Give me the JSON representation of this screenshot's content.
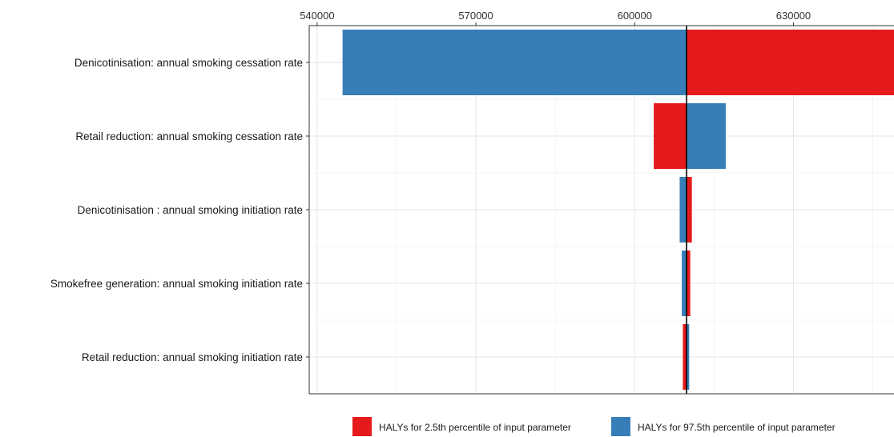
{
  "chart_data": {
    "type": "bar",
    "orientation": "horizontal",
    "subtype": "tornado",
    "baseline": 609800,
    "xlim": [
      538500,
      649000
    ],
    "xticks": [
      540000,
      570000,
      600000,
      630000
    ],
    "xtick_labels": [
      "540000",
      "570000",
      "600000",
      "630000"
    ],
    "x_axis_position": "top",
    "grid": true,
    "categories": [
      "Denicotinisation: annual smoking cessation rate",
      "Retail reduction: annual smoking cessation rate",
      "Denicotinisation : annual smoking initiation rate",
      "Smokefree generation: annual smoking initiation rate",
      "Retail reduction: annual smoking initiation rate"
    ],
    "series": [
      {
        "name": "HALYs for 2.5th percentile of input parameter",
        "color": "#e41a1c",
        "values": [
          652000,
          603600,
          610800,
          610500,
          609100
        ]
      },
      {
        "name": "HALYs for 97.5th percentile of input parameter",
        "color": "#377eb8",
        "values": [
          544800,
          617200,
          608500,
          608900,
          610300
        ]
      }
    ],
    "legend_position": "bottom"
  }
}
